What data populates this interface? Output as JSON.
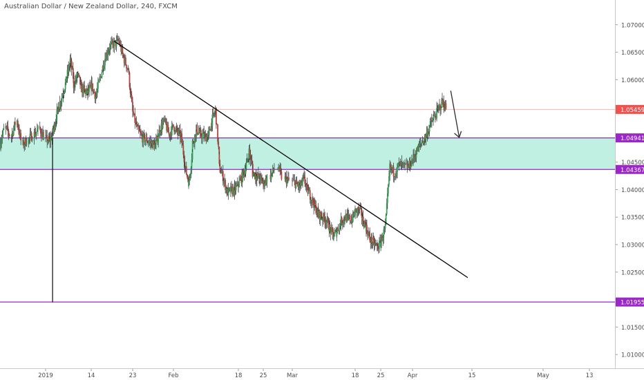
{
  "header": {
    "title": "Australian Dollar / New Zealand Dollar, 240, FXCM"
  },
  "colors": {
    "up": "#3aa35a",
    "down": "#b5443e",
    "wick": "#2b2b2b",
    "level_line": "#9b27c9",
    "zone_fill": "#bff0e2",
    "price_line": "#f3b6b6",
    "price_label": "#ef5350",
    "trendline": "#000000"
  },
  "chart_data": {
    "type": "candlestick",
    "symbol": "AUDNZD",
    "timeframe": "240",
    "source": "FXCM",
    "xlabel": "",
    "ylabel": "",
    "ylim": [
      1.0075,
      1.0745
    ],
    "y_ticks": [
      {
        "value": 1.07,
        "label": "1.07000"
      },
      {
        "value": 1.065,
        "label": "1.06500"
      },
      {
        "value": 1.06,
        "label": "1.06000"
      },
      {
        "value": 1.045,
        "label": "1.04500"
      },
      {
        "value": 1.04,
        "label": "1.04000"
      },
      {
        "value": 1.035,
        "label": "1.03500"
      },
      {
        "value": 1.03,
        "label": "1.03000"
      },
      {
        "value": 1.025,
        "label": "1.02500"
      },
      {
        "value": 1.015,
        "label": "1.01500"
      },
      {
        "value": 1.01,
        "label": "1.01000"
      }
    ],
    "x_ticks": [
      {
        "date": "2019-01-01",
        "label": "2019"
      },
      {
        "date": "2019-01-14",
        "label": "14"
      },
      {
        "date": "2019-01-23",
        "label": "23"
      },
      {
        "date": "2019-02-01",
        "label": "Feb"
      },
      {
        "date": "2019-02-18",
        "label": "18"
      },
      {
        "date": "2019-02-25",
        "label": "25"
      },
      {
        "date": "2019-03-01",
        "label": "Mar"
      },
      {
        "date": "2019-03-18",
        "label": "18"
      },
      {
        "date": "2019-03-25",
        "label": "25"
      },
      {
        "date": "2019-04-01",
        "label": "Apr"
      },
      {
        "date": "2019-04-15",
        "label": "15"
      },
      {
        "date": "2019-05-01",
        "label": "May"
      },
      {
        "date": "2019-05-13",
        "label": "13"
      }
    ],
    "price_path": [
      [
        "2018-12-24",
        1.0485
      ],
      [
        "2018-12-25",
        1.0512
      ],
      [
        "2018-12-26",
        1.0498
      ],
      [
        "2018-12-27",
        1.0525
      ],
      [
        "2018-12-28",
        1.0482
      ],
      [
        "2018-12-31",
        1.051
      ],
      [
        "2019-01-01",
        1.0492
      ],
      [
        "2019-01-02",
        1.0488
      ],
      [
        "2019-01-03",
        1.0505
      ],
      [
        "2019-01-04",
        1.0535
      ],
      [
        "2019-01-06",
        1.058
      ],
      [
        "2019-01-07",
        1.0605
      ],
      [
        "2019-01-08",
        1.0635
      ],
      [
        "2019-01-09",
        1.059
      ],
      [
        "2019-01-10",
        1.061
      ],
      [
        "2019-01-11",
        1.0585
      ],
      [
        "2019-01-13",
        1.0575
      ],
      [
        "2019-01-14",
        1.059
      ],
      [
        "2019-01-15",
        1.057
      ],
      [
        "2019-01-16",
        1.0605
      ],
      [
        "2019-01-17",
        1.064
      ],
      [
        "2019-01-18",
        1.066
      ],
      [
        "2019-01-20",
        1.067
      ],
      [
        "2019-01-21",
        1.064
      ],
      [
        "2019-01-22",
        1.062
      ],
      [
        "2019-01-23",
        1.054
      ],
      [
        "2019-01-24",
        1.051
      ],
      [
        "2019-01-25",
        1.0495
      ],
      [
        "2019-01-27",
        1.0485
      ],
      [
        "2019-01-28",
        1.048
      ],
      [
        "2019-01-29",
        1.051
      ],
      [
        "2019-01-30",
        1.0525
      ],
      [
        "2019-01-31",
        1.05
      ],
      [
        "2019-02-01",
        1.0515
      ],
      [
        "2019-02-03",
        1.0495
      ],
      [
        "2019-02-04",
        1.044
      ],
      [
        "2019-02-05",
        1.041
      ],
      [
        "2019-02-06",
        1.0485
      ],
      [
        "2019-02-07",
        1.051
      ],
      [
        "2019-02-08",
        1.05
      ],
      [
        "2019-02-10",
        1.0495
      ],
      [
        "2019-02-11",
        1.0525
      ],
      [
        "2019-02-12",
        1.0545
      ],
      [
        "2019-02-13",
        1.044
      ],
      [
        "2019-02-14",
        1.042
      ],
      [
        "2019-02-15",
        1.0395
      ],
      [
        "2019-02-17",
        1.04
      ],
      [
        "2019-02-18",
        1.041
      ],
      [
        "2019-02-19",
        1.0425
      ],
      [
        "2019-02-20",
        1.044
      ],
      [
        "2019-02-21",
        1.047
      ],
      [
        "2019-02-22",
        1.043
      ],
      [
        "2019-02-24",
        1.042
      ],
      [
        "2019-02-25",
        1.041
      ],
      [
        "2019-02-26",
        1.0425
      ],
      [
        "2019-02-27",
        1.044
      ],
      [
        "2019-02-28",
        1.042
      ],
      [
        "2019-03-01",
        1.0415
      ],
      [
        "2019-03-03",
        1.0405
      ],
      [
        "2019-03-04",
        1.042
      ],
      [
        "2019-03-05",
        1.04
      ],
      [
        "2019-03-06",
        1.0385
      ],
      [
        "2019-03-07",
        1.037
      ],
      [
        "2019-03-08",
        1.0355
      ],
      [
        "2019-03-10",
        1.0345
      ],
      [
        "2019-03-11",
        1.033
      ],
      [
        "2019-03-12",
        1.0315
      ],
      [
        "2019-03-13",
        1.0325
      ],
      [
        "2019-03-14",
        1.034
      ],
      [
        "2019-03-15",
        1.035
      ],
      [
        "2019-03-17",
        1.0345
      ],
      [
        "2019-03-18",
        1.036
      ],
      [
        "2019-03-19",
        1.0365
      ],
      [
        "2019-03-20",
        1.0345
      ],
      [
        "2019-03-21",
        1.033
      ],
      [
        "2019-03-22",
        1.031
      ],
      [
        "2019-03-24",
        1.0295
      ],
      [
        "2019-03-25",
        1.0305
      ],
      [
        "2019-03-26",
        1.033
      ],
      [
        "2019-03-27",
        1.044
      ],
      [
        "2019-03-28",
        1.043
      ],
      [
        "2019-03-29",
        1.0445
      ],
      [
        "2019-03-31",
        1.044
      ],
      [
        "2019-04-01",
        1.0455
      ],
      [
        "2019-04-02",
        1.047
      ],
      [
        "2019-04-03",
        1.0485
      ],
      [
        "2019-04-04",
        1.0495
      ],
      [
        "2019-04-05",
        1.0515
      ],
      [
        "2019-04-07",
        1.0545
      ],
      [
        "2019-04-08",
        1.056
      ],
      [
        "2019-04-09",
        1.0546
      ]
    ],
    "annotations": {
      "current_price": {
        "value": 1.05459,
        "label": "1.05459"
      },
      "resistance_line": {
        "value": 1.04941,
        "label": "1.04941"
      },
      "support_line": {
        "value": 1.04367,
        "label": "1.04367"
      },
      "lower_line": {
        "value": 1.01955,
        "label": "1.01955"
      },
      "trendline": {
        "start": {
          "date": "2019-01-19",
          "value": 1.067
        },
        "end": {
          "date": "2019-04-14",
          "value": 1.024
        }
      },
      "spike_wick": {
        "date": "2019-01-02",
        "value": 1.0195
      },
      "arrow": {
        "start": {
          "date": "2019-04-10",
          "value": 1.058
        },
        "end": {
          "date": "2019-04-12",
          "value": 1.0495
        }
      }
    }
  }
}
